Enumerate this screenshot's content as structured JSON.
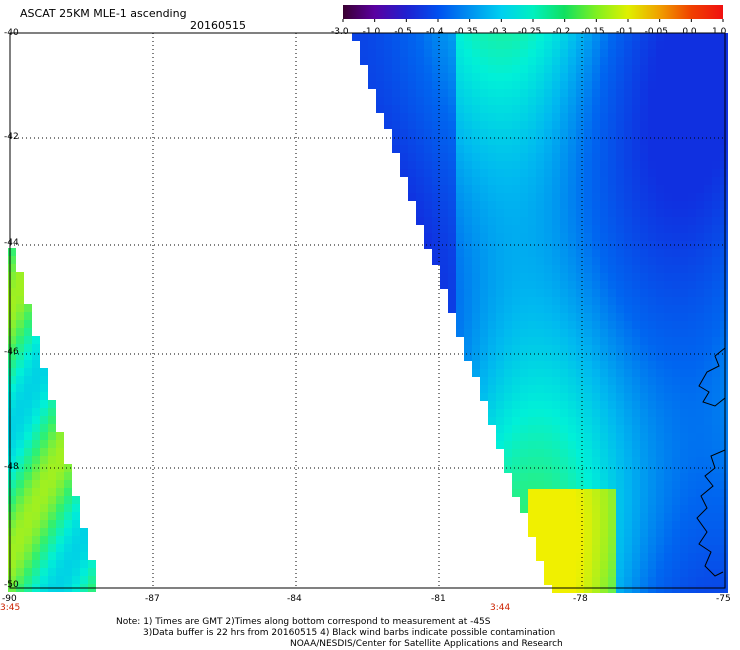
{
  "header": {
    "title": "ASCAT 25KM MLE-1 ascending",
    "date": "20160515"
  },
  "colorbar": {
    "labels": [
      "-3.0",
      "-1.0",
      "-0.5",
      "-0.4",
      "-0.35",
      "-0.3",
      "-0.25",
      "-0.2",
      "-0.15",
      "-0.1",
      "-0.05",
      "0.0",
      "1.0"
    ],
    "colors": [
      "#3a0030",
      "#5a00a0",
      "#2020d0",
      "#0050f0",
      "#0090f0",
      "#00d0f0",
      "#00f0c0",
      "#10e060",
      "#80f020",
      "#e0f000",
      "#f0a000",
      "#f04000",
      "#f01010"
    ]
  },
  "map": {
    "lat_labels": [
      "-40",
      "-42",
      "-44",
      "-46",
      "-48",
      "-50"
    ],
    "lon_labels": [
      "-90",
      "-87",
      "-84",
      "-81",
      "-78",
      "-75"
    ],
    "time_labels": [
      "3:45",
      "3:44"
    ]
  },
  "footer": {
    "line1": "Note: 1) Times are GMT 2)Times along bottom correspond to measurement at -45S",
    "line2": "3)Data buffer is 22 hrs from 20160515 4) Black wind barbs indicate possible contamination",
    "line3": "NOAA/NESDIS/Center for Satellite Applications and Research"
  }
}
